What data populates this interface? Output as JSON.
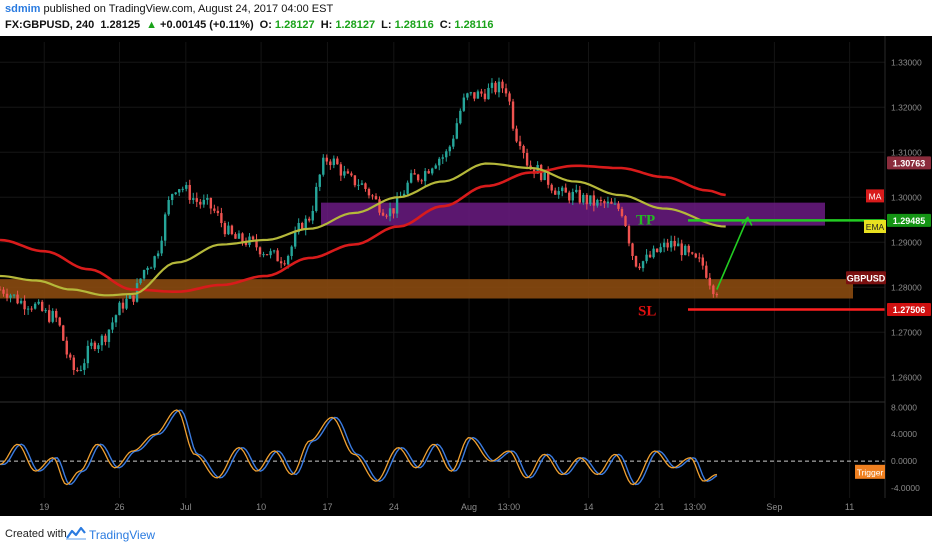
{
  "header": {
    "user": "sdmim",
    "published": "published on TradingView.com, August 24, 2017 04:00 EST",
    "symbol": "FX:GBPUSD, 240",
    "last": "1.28125",
    "change": "+0.00145 (+0.11%)",
    "o_label": "O:",
    "o_value": "1.28127",
    "h_label": "H:",
    "h_value": "1.28127",
    "l_label": "L:",
    "l_value": "1.28116",
    "c_label": "C:",
    "c_value": "1.28116"
  },
  "footer": {
    "created": "Created with",
    "brand": "TradingView"
  },
  "colors": {
    "background": "#000000",
    "up": "#26a69a",
    "down": "#ef5350",
    "ma": "#d81b1b",
    "ema": "#b5b83a",
    "tp_zone": "#6b1b82",
    "sl_zone": "#8a4a10",
    "tp_line": "#22cc22",
    "sl_line": "#ff2020",
    "osc_main": "#f0a030",
    "osc_trigger": "#3a7be0"
  },
  "chart_data": [
    {
      "type": "candlestick",
      "x_ticks": [
        "19",
        "26",
        "Jul",
        "10",
        "17",
        "24",
        "Aug",
        "13:00",
        "14",
        "21",
        "13:00",
        "Sep",
        "11"
      ],
      "y_ticks": [
        "1.33000",
        "1.32000",
        "1.31000",
        "1.30000",
        "1.29000",
        "1.28000",
        "1.27000",
        "1.26000"
      ],
      "ylim": [
        1.2545,
        1.3345
      ],
      "price_labels": [
        {
          "text": "1.30763",
          "value": 1.30763,
          "color": "#8b2c3c"
        },
        {
          "text": "1.29485",
          "value": 1.29485,
          "color": "#149414"
        },
        {
          "text": "1.27506",
          "value": 1.27506,
          "color": "#d01010"
        },
        {
          "text": "GBPUSD",
          "value": 1.2821,
          "color": "#7b1010"
        }
      ],
      "legend": [
        {
          "text": "MA",
          "color": "#d81b1b"
        },
        {
          "text": "EMA",
          "color": "#e8e020"
        }
      ],
      "annotations": [
        {
          "text": "TP",
          "color": "#22bb22"
        },
        {
          "text": "SL",
          "color": "#e01010"
        }
      ],
      "zones": [
        {
          "name": "tp-zone",
          "from": 1.2937,
          "to": 1.2988
        },
        {
          "name": "sl-zone",
          "from": 1.2775,
          "to": 1.2818
        }
      ],
      "levels": [
        {
          "name": "tp-level",
          "value": 1.29485
        },
        {
          "name": "sl-level",
          "value": 1.27506
        }
      ],
      "path_anchors": [
        {
          "t": 0,
          "p": 1.2795
        },
        {
          "t": 0.03,
          "p": 1.2765
        },
        {
          "t": 0.06,
          "p": 1.2735
        },
        {
          "t": 0.085,
          "p": 1.2615
        },
        {
          "t": 0.11,
          "p": 1.268
        },
        {
          "t": 0.145,
          "p": 1.277
        },
        {
          "t": 0.17,
          "p": 1.2855
        },
        {
          "t": 0.2,
          "p": 1.3025
        },
        {
          "t": 0.23,
          "p": 1.2985
        },
        {
          "t": 0.27,
          "p": 1.2905
        },
        {
          "t": 0.32,
          "p": 1.2865
        },
        {
          "t": 0.345,
          "p": 1.2945
        },
        {
          "t": 0.37,
          "p": 1.3085
        },
        {
          "t": 0.4,
          "p": 1.3035
        },
        {
          "t": 0.44,
          "p": 1.297
        },
        {
          "t": 0.47,
          "p": 1.3045
        },
        {
          "t": 0.5,
          "p": 1.309
        },
        {
          "t": 0.53,
          "p": 1.3225
        },
        {
          "t": 0.57,
          "p": 1.3245
        },
        {
          "t": 0.585,
          "p": 1.3135
        },
        {
          "t": 0.6,
          "p": 1.3065
        },
        {
          "t": 0.64,
          "p": 1.3005
        },
        {
          "t": 0.68,
          "p": 1.2985
        },
        {
          "t": 0.7,
          "p": 1.2975
        },
        {
          "t": 0.72,
          "p": 1.2855
        },
        {
          "t": 0.76,
          "p": 1.2895
        },
        {
          "t": 0.79,
          "p": 1.2855
        },
        {
          "t": 0.81,
          "p": 1.2795
        }
      ],
      "ma_anchors": [
        {
          "t": 0,
          "p": 1.2905
        },
        {
          "t": 0.05,
          "p": 1.288
        },
        {
          "t": 0.1,
          "p": 1.284
        },
        {
          "t": 0.15,
          "p": 1.2795
        },
        {
          "t": 0.2,
          "p": 1.279
        },
        {
          "t": 0.25,
          "p": 1.2805
        },
        {
          "t": 0.3,
          "p": 1.2825
        },
        {
          "t": 0.35,
          "p": 1.2865
        },
        {
          "t": 0.4,
          "p": 1.2895
        },
        {
          "t": 0.45,
          "p": 1.2935
        },
        {
          "t": 0.5,
          "p": 1.298
        },
        {
          "t": 0.55,
          "p": 1.3025
        },
        {
          "t": 0.6,
          "p": 1.3055
        },
        {
          "t": 0.65,
          "p": 1.307
        },
        {
          "t": 0.7,
          "p": 1.3065
        },
        {
          "t": 0.75,
          "p": 1.3045
        },
        {
          "t": 0.8,
          "p": 1.3015
        },
        {
          "t": 0.82,
          "p": 1.3005
        }
      ],
      "ema_anchors": [
        {
          "t": 0,
          "p": 1.2825
        },
        {
          "t": 0.04,
          "p": 1.2815
        },
        {
          "t": 0.08,
          "p": 1.2795
        },
        {
          "t": 0.12,
          "p": 1.2782
        },
        {
          "t": 0.15,
          "p": 1.2785
        },
        {
          "t": 0.2,
          "p": 1.2855
        },
        {
          "t": 0.25,
          "p": 1.2895
        },
        {
          "t": 0.3,
          "p": 1.2905
        },
        {
          "t": 0.35,
          "p": 1.293
        },
        {
          "t": 0.4,
          "p": 1.2965
        },
        {
          "t": 0.45,
          "p": 1.3
        },
        {
          "t": 0.5,
          "p": 1.3035
        },
        {
          "t": 0.55,
          "p": 1.3075
        },
        {
          "t": 0.6,
          "p": 1.3065
        },
        {
          "t": 0.65,
          "p": 1.3035
        },
        {
          "t": 0.7,
          "p": 1.3005
        },
        {
          "t": 0.75,
          "p": 1.2975
        },
        {
          "t": 0.82,
          "p": 1.2935
        }
      ],
      "projection": [
        {
          "t": 0.81,
          "p": 1.2795
        },
        {
          "t": 0.845,
          "p": 1.2955
        }
      ]
    },
    {
      "type": "line",
      "name": "oscillator",
      "y_ticks": [
        "8.0000",
        "4.0000",
        "0.0000",
        "-4.0000"
      ],
      "ylim": [
        -5.5,
        8.5
      ],
      "zero_line": 0,
      "legend": [
        {
          "text": "Trigger",
          "color": "#f08020"
        }
      ],
      "anchors": [
        {
          "t": 0,
          "p": -0.5
        },
        {
          "t": 0.02,
          "p": 2.5
        },
        {
          "t": 0.04,
          "p": -1.5
        },
        {
          "t": 0.06,
          "p": 0.5
        },
        {
          "t": 0.075,
          "p": -3.5
        },
        {
          "t": 0.09,
          "p": -1.5
        },
        {
          "t": 0.11,
          "p": 2.5
        },
        {
          "t": 0.13,
          "p": -1
        },
        {
          "t": 0.15,
          "p": 1.5
        },
        {
          "t": 0.175,
          "p": 4
        },
        {
          "t": 0.2,
          "p": 7.6
        },
        {
          "t": 0.22,
          "p": 1
        },
        {
          "t": 0.245,
          "p": -2.5
        },
        {
          "t": 0.27,
          "p": 2
        },
        {
          "t": 0.29,
          "p": -1.5
        },
        {
          "t": 0.31,
          "p": 1.5
        },
        {
          "t": 0.33,
          "p": -2
        },
        {
          "t": 0.35,
          "p": 3
        },
        {
          "t": 0.375,
          "p": 6.5
        },
        {
          "t": 0.4,
          "p": 1
        },
        {
          "t": 0.425,
          "p": -3
        },
        {
          "t": 0.45,
          "p": 2
        },
        {
          "t": 0.47,
          "p": -1
        },
        {
          "t": 0.49,
          "p": 2.5
        },
        {
          "t": 0.51,
          "p": -1.5
        },
        {
          "t": 0.53,
          "p": 3.5
        },
        {
          "t": 0.555,
          "p": 0
        },
        {
          "t": 0.575,
          "p": 1.5
        },
        {
          "t": 0.595,
          "p": -2.5
        },
        {
          "t": 0.615,
          "p": 1
        },
        {
          "t": 0.635,
          "p": -2
        },
        {
          "t": 0.655,
          "p": 0.5
        },
        {
          "t": 0.675,
          "p": -2
        },
        {
          "t": 0.695,
          "p": 1
        },
        {
          "t": 0.715,
          "p": -3.5
        },
        {
          "t": 0.74,
          "p": 1.5
        },
        {
          "t": 0.76,
          "p": -1
        },
        {
          "t": 0.78,
          "p": 0.5
        },
        {
          "t": 0.795,
          "p": -3
        },
        {
          "t": 0.81,
          "p": -2
        }
      ]
    }
  ]
}
